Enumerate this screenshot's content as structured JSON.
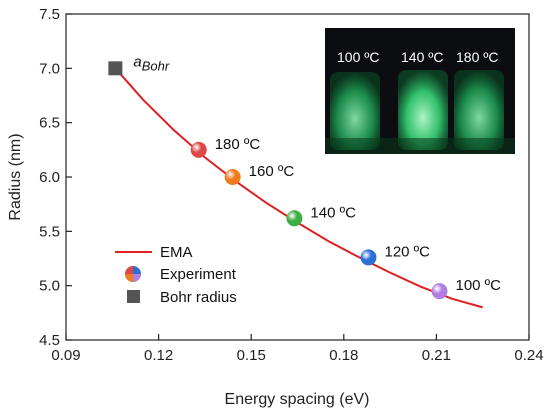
{
  "chart_data": {
    "type": "scatter",
    "xlabel": "Energy spacing (eV)",
    "ylabel": "Radius (nm)",
    "xlim": [
      0.09,
      0.24
    ],
    "ylim": [
      4.5,
      7.5
    ],
    "xticks": [
      "0.09",
      "0.12",
      "0.15",
      "0.18",
      "0.21",
      "0.24"
    ],
    "yticks": [
      "4.5",
      "5.0",
      "5.5",
      "6.0",
      "6.5",
      "7.0",
      "7.5"
    ],
    "grid": false,
    "legend_position": "bottom-left",
    "legend": [
      {
        "label": "EMA",
        "marker": "line",
        "color": "#e02020"
      },
      {
        "label": "Experiment",
        "marker": "multicolor-sphere"
      },
      {
        "label": "Bohr radius",
        "marker": "square",
        "color": "#555555"
      }
    ],
    "series": [
      {
        "name": "EMA",
        "kind": "line",
        "color": "#e02020",
        "x": [
          0.106,
          0.115,
          0.125,
          0.135,
          0.145,
          0.155,
          0.165,
          0.175,
          0.185,
          0.195,
          0.205,
          0.215,
          0.225
        ],
        "y": [
          7.0,
          6.71,
          6.43,
          6.18,
          5.96,
          5.76,
          5.58,
          5.41,
          5.26,
          5.12,
          4.99,
          4.88,
          4.8
        ]
      },
      {
        "name": "Experiment",
        "kind": "points",
        "points": [
          {
            "x": 0.133,
            "y": 6.25,
            "label": "180 ºC",
            "color": "#e04848"
          },
          {
            "x": 0.144,
            "y": 6.0,
            "label": "160 ºC",
            "color": "#f27a1a"
          },
          {
            "x": 0.164,
            "y": 5.62,
            "label": "140 ºC",
            "color": "#3cb043"
          },
          {
            "x": 0.188,
            "y": 5.26,
            "label": "120 ºC",
            "color": "#2e6fd6"
          },
          {
            "x": 0.211,
            "y": 4.95,
            "label": "100 ºC",
            "color": "#b07de0"
          }
        ]
      },
      {
        "name": "Bohr radius",
        "kind": "point",
        "color": "#555555",
        "x": 0.106,
        "y": 7.0,
        "label": "a",
        "label_subscript": "Bohr"
      }
    ],
    "inset": {
      "description_labels": [
        "100 ºC",
        "140 ºC",
        "180 ºC"
      ]
    }
  }
}
